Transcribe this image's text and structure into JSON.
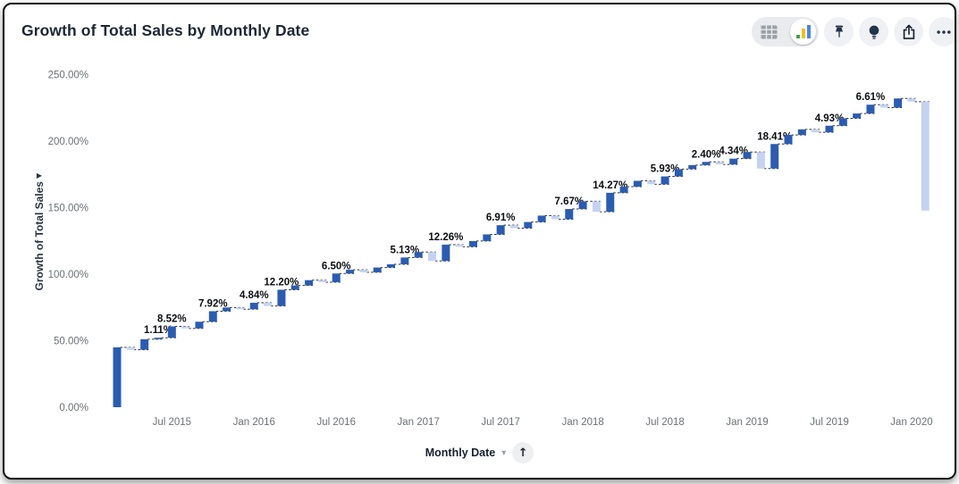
{
  "header": {
    "title": "Growth of Total Sales by Monthly Date"
  },
  "toolbar": {
    "view_toggle": {
      "selected": "chart",
      "table_icon": "table-grid-icon",
      "chart_icon": "bar-chart-icon"
    },
    "buttons": [
      {
        "name": "pin-button",
        "icon": "pushpin-icon"
      },
      {
        "name": "explore-button",
        "icon": "lightbulb-icon"
      },
      {
        "name": "share-button",
        "icon": "share-export-icon"
      },
      {
        "name": "more-button",
        "icon": "ellipsis-icon"
      }
    ],
    "chart_icon_colors": {
      "green": "#34a853",
      "yellow": "#fbbc04",
      "blue": "#4285f4"
    }
  },
  "ui_glyphs": {
    "y_axis_arrow": "▶",
    "x_axis_caret": "▾",
    "sort_arrow": "↑"
  },
  "chart_data": {
    "type": "waterfall",
    "title": "Growth of Total Sales by Monthly Date",
    "ylabel": "Growth of Total Sales",
    "xlabel": "Monthly Date",
    "ylim": [
      0,
      250
    ],
    "grid": false,
    "legend": false,
    "y_ticks": [
      "0.00%",
      "50.00%",
      "100.00%",
      "150.00%",
      "200.00%",
      "250.00%"
    ],
    "x_ticks": [
      {
        "index": 4,
        "label": "Jul 2015"
      },
      {
        "index": 10,
        "label": "Jan 2016"
      },
      {
        "index": 16,
        "label": "Jul 2016"
      },
      {
        "index": 22,
        "label": "Jan 2017"
      },
      {
        "index": 28,
        "label": "Jul 2017"
      },
      {
        "index": 34,
        "label": "Jan 2018"
      },
      {
        "index": 40,
        "label": "Jul 2018"
      },
      {
        "index": 46,
        "label": "Jan 2019"
      },
      {
        "index": 52,
        "label": "Jul 2019"
      },
      {
        "index": 58,
        "label": "Jan 2020"
      }
    ],
    "colors": {
      "increase": "#2a5cb4",
      "decrease": "#c3d3f0",
      "connector": "#2f2f2f"
    },
    "bars": [
      {
        "month": "Mar 2015",
        "delta": 45.0,
        "label": null
      },
      {
        "month": "Apr 2015",
        "delta": -1.8,
        "label": null
      },
      {
        "month": "May 2015",
        "delta": 7.9,
        "label": null
      },
      {
        "month": "Jun 2015",
        "delta": 1.11,
        "label": "1.11%"
      },
      {
        "month": "Jul 2015",
        "delta": 8.52,
        "label": "8.52%"
      },
      {
        "month": "Aug 2015",
        "delta": -1.5,
        "label": null
      },
      {
        "month": "Sep 2015",
        "delta": 5.0,
        "label": null
      },
      {
        "month": "Oct 2015",
        "delta": 7.92,
        "label": "7.92%"
      },
      {
        "month": "Nov 2015",
        "delta": 2.8,
        "label": null
      },
      {
        "month": "Dec 2015",
        "delta": -1.3,
        "label": null
      },
      {
        "month": "Jan 2016",
        "delta": 4.84,
        "label": "4.84%"
      },
      {
        "month": "Feb 2016",
        "delta": -2.4,
        "label": null
      },
      {
        "month": "Mar 2016",
        "delta": 12.2,
        "label": "12.20%"
      },
      {
        "month": "Apr 2016",
        "delta": 3.2,
        "label": null
      },
      {
        "month": "May 2016",
        "delta": 4.0,
        "label": null
      },
      {
        "month": "Jun 2016",
        "delta": -1.5,
        "label": null
      },
      {
        "month": "Jul 2016",
        "delta": 6.5,
        "label": "6.50%"
      },
      {
        "month": "Aug 2016",
        "delta": 2.8,
        "label": null
      },
      {
        "month": "Sep 2016",
        "delta": -1.9,
        "label": null
      },
      {
        "month": "Oct 2016",
        "delta": 3.6,
        "label": null
      },
      {
        "month": "Nov 2016",
        "delta": 2.4,
        "label": null
      },
      {
        "month": "Dec 2016",
        "delta": 5.13,
        "label": "5.13%"
      },
      {
        "month": "Jan 2017",
        "delta": 4.1,
        "label": null
      },
      {
        "month": "Feb 2017",
        "delta": -6.7,
        "label": null
      },
      {
        "month": "Mar 2017",
        "delta": 12.26,
        "label": "12.26%"
      },
      {
        "month": "Apr 2017",
        "delta": -1.6,
        "label": null
      },
      {
        "month": "May 2017",
        "delta": 4.3,
        "label": null
      },
      {
        "month": "Jun 2017",
        "delta": 5.0,
        "label": null
      },
      {
        "month": "Jul 2017",
        "delta": 6.91,
        "label": "6.91%"
      },
      {
        "month": "Aug 2017",
        "delta": -2.2,
        "label": null
      },
      {
        "month": "Sep 2017",
        "delta": 4.6,
        "label": null
      },
      {
        "month": "Oct 2017",
        "delta": 4.8,
        "label": null
      },
      {
        "month": "Nov 2017",
        "delta": -2.7,
        "label": null
      },
      {
        "month": "Dec 2017",
        "delta": 7.67,
        "label": "7.67%"
      },
      {
        "month": "Jan 2018",
        "delta": 5.8,
        "label": null
      },
      {
        "month": "Feb 2018",
        "delta": -7.9,
        "label": null
      },
      {
        "month": "Mar 2018",
        "delta": 14.27,
        "label": "14.27%"
      },
      {
        "month": "Apr 2018",
        "delta": 4.6,
        "label": null
      },
      {
        "month": "May 2018",
        "delta": 4.4,
        "label": null
      },
      {
        "month": "Jun 2018",
        "delta": -2.6,
        "label": null
      },
      {
        "month": "Jul 2018",
        "delta": 5.93,
        "label": "5.93%"
      },
      {
        "month": "Aug 2018",
        "delta": 5.5,
        "label": null
      },
      {
        "month": "Sep 2018",
        "delta": 3.0,
        "label": null
      },
      {
        "month": "Oct 2018",
        "delta": 2.4,
        "label": "2.40%"
      },
      {
        "month": "Nov 2018",
        "delta": -1.9,
        "label": null
      },
      {
        "month": "Dec 2018",
        "delta": 4.34,
        "label": "4.34%"
      },
      {
        "month": "Jan 2019",
        "delta": 5.0,
        "label": null
      },
      {
        "month": "Feb 2019",
        "delta": -12.4,
        "label": null
      },
      {
        "month": "Mar 2019",
        "delta": 18.41,
        "label": "18.41%"
      },
      {
        "month": "Apr 2019",
        "delta": 6.8,
        "label": null
      },
      {
        "month": "May 2019",
        "delta": 4.2,
        "label": null
      },
      {
        "month": "Jun 2019",
        "delta": -2.2,
        "label": null
      },
      {
        "month": "Jul 2019",
        "delta": 4.93,
        "label": "4.93%"
      },
      {
        "month": "Aug 2019",
        "delta": 5.6,
        "label": null
      },
      {
        "month": "Sep 2019",
        "delta": 3.6,
        "label": null
      },
      {
        "month": "Oct 2019",
        "delta": 6.61,
        "label": "6.61%"
      },
      {
        "month": "Nov 2019",
        "delta": -2.2,
        "label": null
      },
      {
        "month": "Dec 2019",
        "delta": 6.9,
        "label": null
      },
      {
        "month": "Jan 2020",
        "delta": -2.4,
        "label": null
      },
      {
        "month": "Feb 2020",
        "delta": -81.9,
        "label": null
      }
    ]
  }
}
